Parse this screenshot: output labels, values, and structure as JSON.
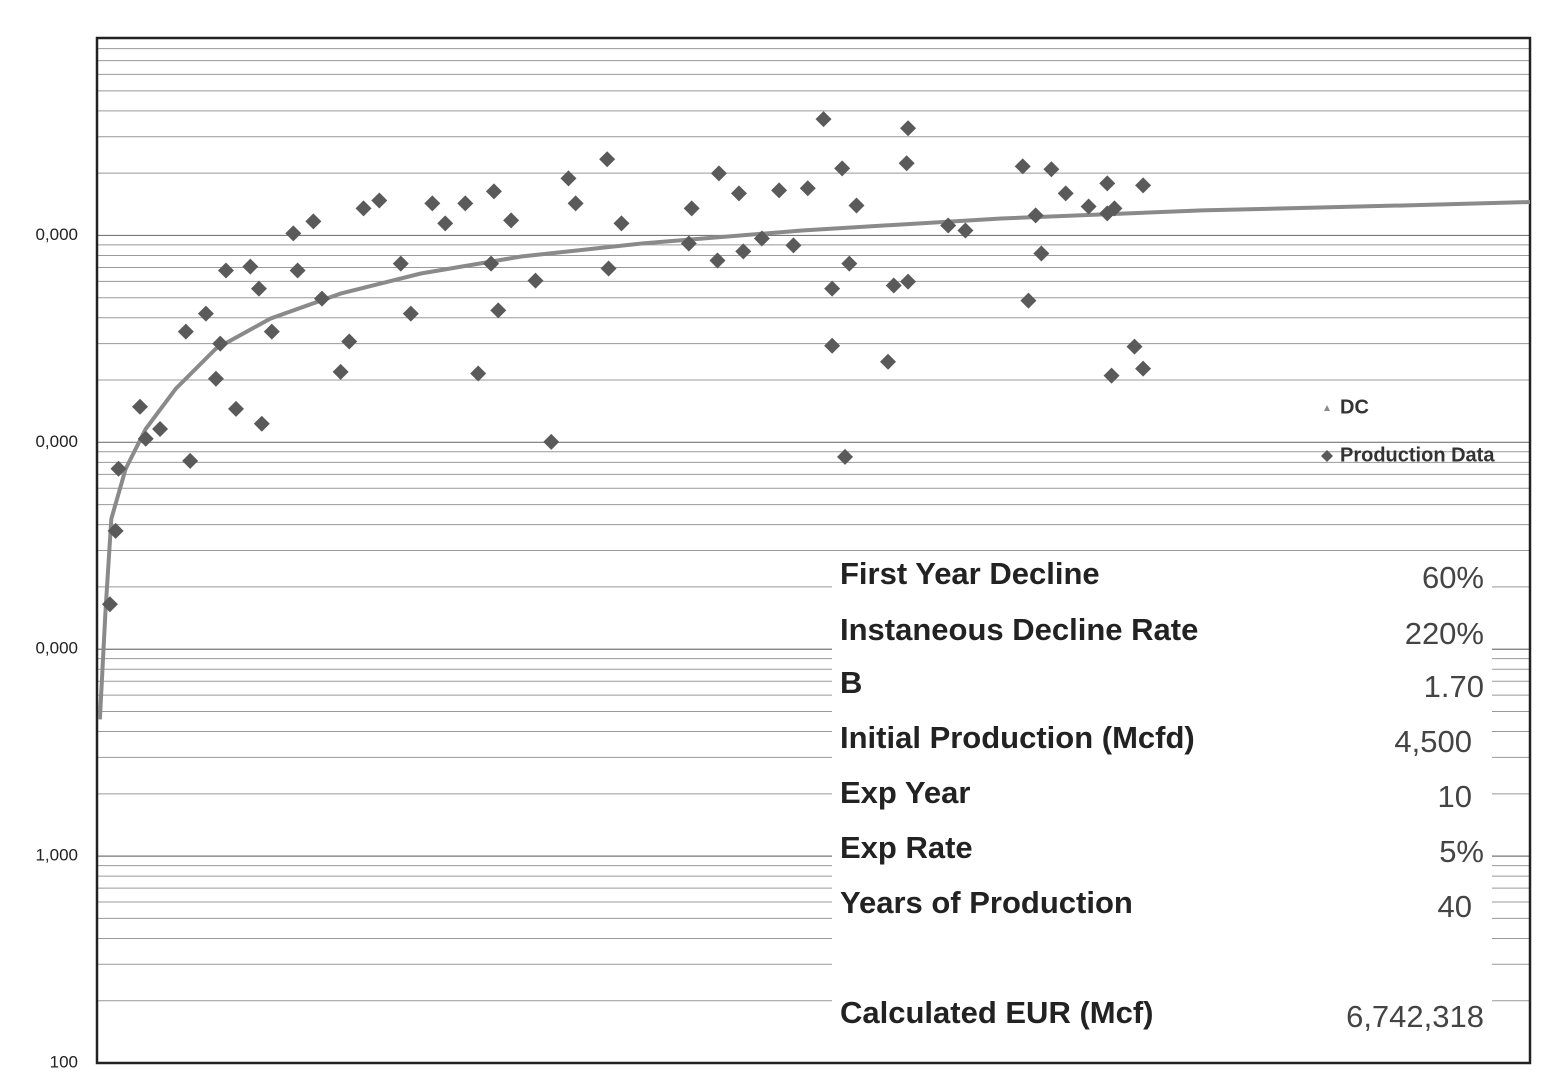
{
  "chart_data": {
    "type": "scatter",
    "log_y": true,
    "grid": true,
    "minor_grid": true,
    "legend": "right",
    "xlim": [
      0,
      10
    ],
    "ylim": [
      100,
      9000000
    ],
    "yticks": [
      100,
      {
        "value": 1000,
        "label": "1,000"
      },
      {
        "value": 10000,
        "label": "0,000"
      },
      {
        "value": 100000,
        "label": "0,000"
      },
      {
        "value": 1000000,
        "label": "0,000"
      }
    ],
    "series": [
      {
        "name": "DC",
        "color": "#8a8a8a",
        "mode": "line",
        "x": [
          0.02,
          0.06,
          0.1,
          0.2,
          0.34,
          0.55,
          0.83,
          1.21,
          1.7,
          2.26,
          2.96,
          3.8,
          4.92,
          6.31,
          7.71,
          9.11,
          10
        ],
        "values": [
          4581,
          15630,
          42660,
          74470,
          116100,
          181600,
          283800,
          396300,
          523600,
          654600,
          790700,
          914000,
          1057000,
          1208000,
          1321000,
          1396000,
          1450000
        ]
      },
      {
        "name": "Production Data",
        "color": "#5a5a5a",
        "mode": "markers",
        "x": [
          0.09,
          0.13,
          0.15,
          0.3,
          0.34,
          0.44,
          0.62,
          0.65,
          0.76,
          0.83,
          0.86,
          0.9,
          0.97,
          1.07,
          1.13,
          1.15,
          1.22,
          1.37,
          1.4,
          1.51,
          1.57,
          1.7,
          1.76,
          1.86,
          1.97,
          2.12,
          2.19,
          2.34,
          2.43,
          2.57,
          2.66,
          2.75,
          2.77,
          2.8,
          2.89,
          3.06,
          3.17,
          3.29,
          3.34,
          3.56,
          3.57,
          3.66,
          4.13,
          4.15,
          4.33,
          4.34,
          4.48,
          4.51,
          4.64,
          4.76,
          4.86,
          4.96,
          5.07,
          5.13,
          5.13,
          5.22,
          5.2,
          5.25,
          5.3,
          5.52,
          5.56,
          5.66,
          5.65,
          5.66,
          5.94,
          6.06,
          6.46,
          6.5,
          6.55,
          6.59,
          6.66,
          6.76,
          6.92,
          7.05,
          7.08,
          7.1,
          7.24,
          7.3,
          7.3,
          7.05
        ],
        "values": [
          16500,
          37300,
          74500,
          148600,
          104000,
          116000,
          343000,
          81300,
          419000,
          203000,
          300000,
          677000,
          145000,
          707000,
          553000,
          123000,
          343000,
          1023000,
          677000,
          1170000,
          495000,
          219000,
          307000,
          1352000,
          1476000,
          731000,
          419000,
          1429000,
          1143000,
          1429000,
          215000,
          731000,
          1633000,
          434000,
          1183000,
          605000,
          100500,
          1888000,
          1429000,
          2334000,
          692000,
          1143000,
          914000,
          1352000,
          757000,
          1995000,
          1597000,
          837000,
          967000,
          1651000,
          895000,
          1690000,
          3648000,
          553000,
          293000,
          85100,
          2110000,
          731000,
          1396000,
          245000,
          573000,
          3297000,
          2234000,
          598000,
          1117000,
          1057000,
          2158000,
          484000,
          1250000,
          818000,
          2089000,
          1597000,
          1380000,
          1786000,
          210000,
          1352000,
          290000,
          1746000,
          227000,
          1279000
        ]
      }
    ],
    "table": [
      {
        "label": "First Year Decline",
        "value": "60%"
      },
      {
        "label": "Instaneous Decline Rate",
        "value": "220%"
      },
      {
        "label": "B",
        "value": "1.70"
      },
      {
        "label": "Initial Production (Mcfd)",
        "value": "4,500"
      },
      {
        "label": "Exp Year",
        "value": "10"
      },
      {
        "label": "Exp Rate",
        "value": "5%"
      },
      {
        "label": "Years of Production",
        "value": "40"
      },
      {
        "label": "Calculated EUR (Mcf)",
        "value": "6,742,318"
      }
    ]
  }
}
